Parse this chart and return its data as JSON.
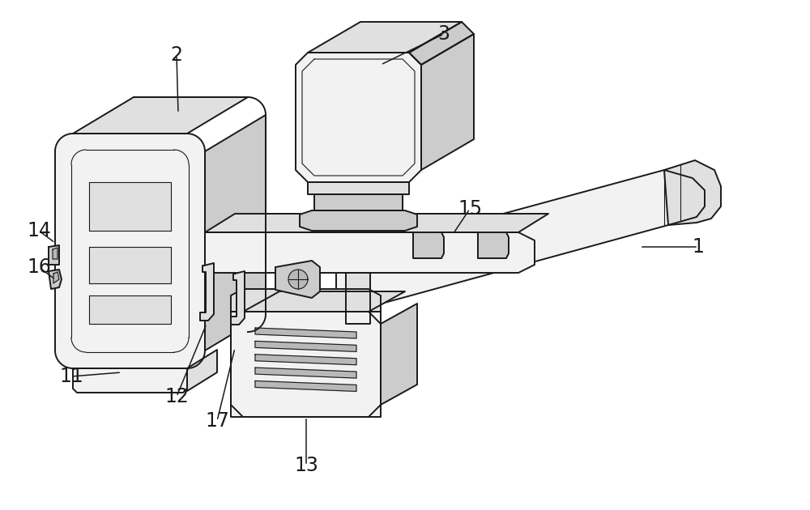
{
  "background_color": "#ffffff",
  "line_color": "#1a1a1a",
  "fill_light": "#f2f2f2",
  "fill_mid": "#e0e0e0",
  "fill_dark": "#cccccc",
  "fill_darker": "#b8b8b8",
  "lw": 1.4,
  "tlw": 0.8,
  "label_fs": 17,
  "figsize": [
    10.0,
    6.3
  ],
  "dpi": 100
}
